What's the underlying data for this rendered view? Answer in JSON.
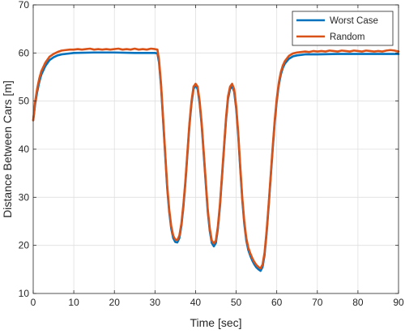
{
  "chart_data": {
    "type": "line",
    "title": "",
    "xlabel": "Time [sec]",
    "ylabel": "Distance Between Cars [m]",
    "xlim": [
      0,
      90
    ],
    "ylim": [
      10,
      70
    ],
    "xticks": [
      0,
      10,
      20,
      30,
      40,
      50,
      60,
      70,
      80,
      90
    ],
    "yticks": [
      10,
      20,
      30,
      40,
      50,
      60,
      70
    ],
    "xtick_labels": [
      "0",
      "10",
      "20",
      "30",
      "40",
      "50",
      "60",
      "70",
      "80",
      "90"
    ],
    "ytick_labels": [
      "10",
      "20",
      "30",
      "40",
      "50",
      "60",
      "70"
    ],
    "grid": true,
    "legend_position": "top-right",
    "series": [
      {
        "name": "Worst Case",
        "color": "#0072bd",
        "points": [
          [
            0,
            46
          ],
          [
            0.5,
            49.5
          ],
          [
            1,
            52
          ],
          [
            1.5,
            54
          ],
          [
            2,
            55.5
          ],
          [
            3,
            57.3
          ],
          [
            4,
            58.5
          ],
          [
            5,
            59.1
          ],
          [
            6,
            59.5
          ],
          [
            7,
            59.7
          ],
          [
            8,
            59.8
          ],
          [
            10,
            60
          ],
          [
            15,
            60.1
          ],
          [
            20,
            60.1
          ],
          [
            25,
            60
          ],
          [
            30,
            60
          ],
          [
            30.6,
            59.9
          ],
          [
            31,
            58
          ],
          [
            31.5,
            53
          ],
          [
            32,
            46
          ],
          [
            32.5,
            39
          ],
          [
            33,
            32
          ],
          [
            33.5,
            27
          ],
          [
            34,
            23.5
          ],
          [
            34.5,
            21.5
          ],
          [
            35,
            20.7
          ],
          [
            35.5,
            20.6
          ],
          [
            36,
            21.5
          ],
          [
            36.5,
            24
          ],
          [
            37,
            28
          ],
          [
            37.5,
            33
          ],
          [
            38,
            39
          ],
          [
            38.5,
            45
          ],
          [
            39,
            49.5
          ],
          [
            39.5,
            52.5
          ],
          [
            40,
            53.3
          ],
          [
            40.5,
            52.5
          ],
          [
            41,
            49.5
          ],
          [
            41.5,
            45
          ],
          [
            42,
            39
          ],
          [
            42.5,
            33
          ],
          [
            43,
            27
          ],
          [
            43.5,
            23
          ],
          [
            44,
            20.5
          ],
          [
            44.5,
            19.8
          ],
          [
            45,
            20.5
          ],
          [
            45.5,
            23.5
          ],
          [
            46,
            28
          ],
          [
            46.5,
            34
          ],
          [
            47,
            40
          ],
          [
            47.5,
            46
          ],
          [
            48,
            50.5
          ],
          [
            48.5,
            52.5
          ],
          [
            49,
            53.1
          ],
          [
            49.5,
            52
          ],
          [
            50,
            48.5
          ],
          [
            50.5,
            43
          ],
          [
            51,
            36
          ],
          [
            51.5,
            29.5
          ],
          [
            52,
            24.5
          ],
          [
            52.5,
            21
          ],
          [
            53,
            19
          ],
          [
            53.5,
            17.8
          ],
          [
            54,
            16.8
          ],
          [
            54.5,
            16
          ],
          [
            55,
            15.4
          ],
          [
            55.5,
            15
          ],
          [
            56,
            14.7
          ],
          [
            56.5,
            15.5
          ],
          [
            57,
            18
          ],
          [
            57.5,
            22.5
          ],
          [
            58,
            28
          ],
          [
            58.5,
            34
          ],
          [
            59,
            40
          ],
          [
            59.5,
            45.5
          ],
          [
            60,
            50
          ],
          [
            60.5,
            53.3
          ],
          [
            61,
            55.5
          ],
          [
            61.5,
            56.9
          ],
          [
            62,
            57.8
          ],
          [
            63,
            58.8
          ],
          [
            64,
            59.3
          ],
          [
            65,
            59.5
          ],
          [
            67,
            59.7
          ],
          [
            70,
            59.7
          ],
          [
            75,
            59.8
          ],
          [
            80,
            59.8
          ],
          [
            85,
            59.8
          ],
          [
            90,
            59.8
          ]
        ]
      },
      {
        "name": "Random",
        "color": "#d95319",
        "points": [
          [
            0,
            46
          ],
          [
            0.5,
            50
          ],
          [
            1,
            52.7
          ],
          [
            1.5,
            54.7
          ],
          [
            2,
            56.2
          ],
          [
            3,
            58
          ],
          [
            4,
            59.2
          ],
          [
            5,
            59.8
          ],
          [
            6,
            60.2
          ],
          [
            7,
            60.5
          ],
          [
            8,
            60.6
          ],
          [
            9,
            60.7
          ],
          [
            10,
            60.7
          ],
          [
            11,
            60.8
          ],
          [
            12,
            60.7
          ],
          [
            13,
            60.8
          ],
          [
            14,
            60.9
          ],
          [
            15,
            60.7
          ],
          [
            16,
            60.8
          ],
          [
            17,
            60.7
          ],
          [
            18,
            60.8
          ],
          [
            19,
            60.7
          ],
          [
            20,
            60.8
          ],
          [
            21,
            60.9
          ],
          [
            22,
            60.7
          ],
          [
            23,
            60.8
          ],
          [
            24,
            60.7
          ],
          [
            25,
            60.9
          ],
          [
            26,
            60.7
          ],
          [
            27,
            60.8
          ],
          [
            28,
            60.7
          ],
          [
            29,
            60.9
          ],
          [
            30,
            60.8
          ],
          [
            30.6,
            60.7
          ],
          [
            31,
            58.5
          ],
          [
            31.5,
            53.5
          ],
          [
            32,
            46.5
          ],
          [
            32.5,
            39.5
          ],
          [
            33,
            32.5
          ],
          [
            33.5,
            27.5
          ],
          [
            34,
            24
          ],
          [
            34.5,
            22
          ],
          [
            35,
            21.2
          ],
          [
            35.5,
            21.1
          ],
          [
            36,
            22
          ],
          [
            36.5,
            24.5
          ],
          [
            37,
            28.5
          ],
          [
            37.5,
            33.5
          ],
          [
            38,
            39.5
          ],
          [
            38.5,
            45.5
          ],
          [
            39,
            50
          ],
          [
            39.5,
            53
          ],
          [
            40,
            53.6
          ],
          [
            40.5,
            53
          ],
          [
            41,
            50
          ],
          [
            41.5,
            45.5
          ],
          [
            42,
            39.5
          ],
          [
            42.5,
            33.5
          ],
          [
            43,
            27.5
          ],
          [
            43.5,
            23.5
          ],
          [
            44,
            21
          ],
          [
            44.5,
            20.4
          ],
          [
            45,
            21
          ],
          [
            45.5,
            24
          ],
          [
            46,
            28.5
          ],
          [
            46.5,
            34.5
          ],
          [
            47,
            40.5
          ],
          [
            47.5,
            46.5
          ],
          [
            48,
            51
          ],
          [
            48.5,
            53
          ],
          [
            49,
            53.6
          ],
          [
            49.5,
            52.5
          ],
          [
            50,
            49
          ],
          [
            50.5,
            43.5
          ],
          [
            51,
            36.5
          ],
          [
            51.5,
            30
          ],
          [
            52,
            25
          ],
          [
            52.5,
            21.5
          ],
          [
            53,
            19.5
          ],
          [
            53.5,
            18.3
          ],
          [
            54,
            17.3
          ],
          [
            54.5,
            16.5
          ],
          [
            55,
            15.9
          ],
          [
            55.5,
            15.5
          ],
          [
            56,
            15.2
          ],
          [
            56.5,
            16
          ],
          [
            57,
            18.5
          ],
          [
            57.5,
            23
          ],
          [
            58,
            28.5
          ],
          [
            58.5,
            34.5
          ],
          [
            59,
            40.5
          ],
          [
            59.5,
            46
          ],
          [
            60,
            50.5
          ],
          [
            60.5,
            53.8
          ],
          [
            61,
            56
          ],
          [
            61.5,
            57.4
          ],
          [
            62,
            58.3
          ],
          [
            63,
            59.4
          ],
          [
            64,
            59.9
          ],
          [
            65,
            60.1
          ],
          [
            66,
            60.2
          ],
          [
            67,
            60.3
          ],
          [
            68,
            60.2
          ],
          [
            69,
            60.4
          ],
          [
            70,
            60.3
          ],
          [
            71,
            60.4
          ],
          [
            72,
            60.3
          ],
          [
            73,
            60.5
          ],
          [
            74,
            60.4
          ],
          [
            75,
            60.3
          ],
          [
            76,
            60.5
          ],
          [
            77,
            60.4
          ],
          [
            78,
            60.3
          ],
          [
            79,
            60.5
          ],
          [
            80,
            60.4
          ],
          [
            81,
            60.3
          ],
          [
            82,
            60.5
          ],
          [
            83,
            60.4
          ],
          [
            84,
            60.3
          ],
          [
            85,
            60.4
          ],
          [
            86,
            60.3
          ],
          [
            87,
            60.5
          ],
          [
            88,
            60.6
          ],
          [
            89,
            60.5
          ],
          [
            90,
            60.3
          ]
        ]
      }
    ]
  }
}
